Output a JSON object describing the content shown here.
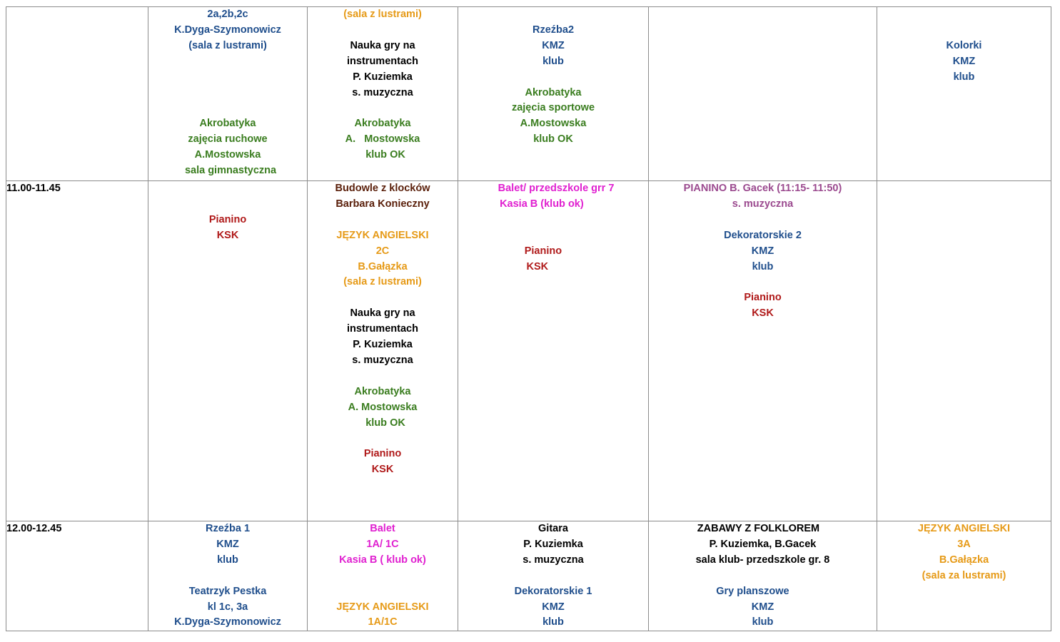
{
  "colors": {
    "navy": "#1f4e8c",
    "green": "#3a7d1f",
    "orange": "#e69a17",
    "black": "#000000",
    "red": "#b01a1a",
    "magenta": "#e020d0",
    "brown": "#5a1f0a",
    "purple": "#9b4a8f",
    "border": "#8c8c8c"
  },
  "rows": [
    {
      "time": "",
      "cells": [
        {
          "lines": [
            {
              "t": "2a,2b,2c",
              "c": "navy"
            },
            {
              "t": "K.Dyga-Szymonowicz",
              "c": "navy"
            },
            {
              "t": "(sala z lustrami)",
              "c": "navy"
            },
            {
              "t": ""
            },
            {
              "t": ""
            },
            {
              "t": ""
            },
            {
              "t": ""
            },
            {
              "t": "Akrobatyka",
              "c": "green"
            },
            {
              "t": "zajęcia ruchowe",
              "c": "green"
            },
            {
              "t": "A.Mostowska",
              "c": "green"
            },
            {
              "t": "  sala gimnastyczna",
              "c": "green"
            }
          ]
        },
        {
          "lines": [
            {
              "t": "(sala z lustrami)",
              "c": "orange"
            },
            {
              "t": ""
            },
            {
              "t": "Nauka gry na",
              "c": "black"
            },
            {
              "t": "instrumentach",
              "c": "black"
            },
            {
              "t": "P. Kuziemka",
              "c": "black"
            },
            {
              "t": "s. muzyczna",
              "c": "black"
            },
            {
              "t": ""
            },
            {
              "t": "Akrobatyka",
              "c": "green"
            },
            {
              "t": "A.   Mostowska",
              "c": "green"
            },
            {
              "t": "  klub OK",
              "c": "green"
            }
          ]
        },
        {
          "lines": [
            {
              "t": ""
            },
            {
              "t": "Rzeźba2",
              "c": "navy"
            },
            {
              "t": "KMZ",
              "c": "navy"
            },
            {
              "t": "klub",
              "c": "navy"
            },
            {
              "t": ""
            },
            {
              "t": "Akrobatyka",
              "c": "green"
            },
            {
              "t": "zajęcia sportowe",
              "c": "green"
            },
            {
              "t": "A.Mostowska",
              "c": "green"
            },
            {
              "t": "klub OK",
              "c": "green"
            }
          ]
        },
        {
          "lines": []
        },
        {
          "lines": [
            {
              "t": ""
            },
            {
              "t": ""
            },
            {
              "t": "Kolorki",
              "c": "navy"
            },
            {
              "t": "KMZ",
              "c": "navy"
            },
            {
              "t": "klub",
              "c": "navy"
            }
          ]
        }
      ]
    },
    {
      "time": "11.00-11.45",
      "cells": [
        {
          "lines": [
            {
              "t": ""
            },
            {
              "t": ""
            },
            {
              "t": "Pianino",
              "c": "red"
            },
            {
              "t": "KSK",
              "c": "red"
            }
          ]
        },
        {
          "lines": [
            {
              "t": "Budowle z klocków",
              "c": "brown"
            },
            {
              "t": "Barbara Konieczny",
              "c": "brown"
            },
            {
              "t": ""
            },
            {
              "t": "JĘZYK ANGIELSKI",
              "c": "orange"
            },
            {
              "t": "2C",
              "c": "orange"
            },
            {
              "t": "B.Gałązka",
              "c": "orange"
            },
            {
              "t": "(sala z lustrami)",
              "c": "orange"
            },
            {
              "t": ""
            },
            {
              "t": "Nauka gry na",
              "c": "black"
            },
            {
              "t": "instrumentach",
              "c": "black"
            },
            {
              "t": "P. Kuziemka",
              "c": "black"
            },
            {
              "t": "s. muzyczna",
              "c": "black"
            },
            {
              "t": ""
            },
            {
              "t": "Akrobatyka",
              "c": "green"
            },
            {
              "t": "A. Mostowska",
              "c": "green"
            },
            {
              "t": "  klub OK",
              "c": "green"
            },
            {
              "t": ""
            },
            {
              "t": "Pianino",
              "c": "red"
            },
            {
              "t": "KSK",
              "c": "red"
            }
          ]
        },
        {
          "lines": [
            {
              "t": "  Balet/ przedszkole grr 7",
              "c": "magenta"
            },
            {
              "t": "Kasia B (klub ok)        ",
              "c": "magenta"
            },
            {
              "t": ""
            },
            {
              "t": ""
            },
            {
              "t": "Pianino       ",
              "c": "red"
            },
            {
              "t": "KSK           ",
              "c": "red"
            }
          ]
        },
        {
          "lines": [
            {
              "t": "PIANINO B. Gacek (11:15- 11:50)",
              "c": "purple"
            },
            {
              "t": "s. muzyczna",
              "c": "purple"
            },
            {
              "t": ""
            },
            {
              "t": "Dekoratorskie 2",
              "c": "navy"
            },
            {
              "t": "KMZ",
              "c": "navy"
            },
            {
              "t": "klub",
              "c": "navy"
            },
            {
              "t": ""
            },
            {
              "t": "Pianino",
              "c": "red"
            },
            {
              "t": "KSK",
              "c": "red"
            }
          ]
        },
        {
          "lines": []
        }
      ]
    },
    {
      "time": "12.00-12.45",
      "cells": [
        {
          "lines": [
            {
              "t": "Rzeźba 1",
              "c": "navy"
            },
            {
              "t": "KMZ",
              "c": "navy"
            },
            {
              "t": "klub",
              "c": "navy"
            },
            {
              "t": ""
            },
            {
              "t": "Teatrzyk Pestka",
              "c": "navy"
            },
            {
              "t": "kl 1c, 3a",
              "c": "navy"
            },
            {
              "t": "K.Dyga-Szymonowicz",
              "c": "navy"
            }
          ]
        },
        {
          "lines": [
            {
              "t": "Balet",
              "c": "magenta"
            },
            {
              "t": "1A/ 1C",
              "c": "magenta"
            },
            {
              "t": "Kasia B ( klub ok)",
              "c": "magenta"
            },
            {
              "t": ""
            },
            {
              "t": ""
            },
            {
              "t": "JĘZYK ANGIELSKI",
              "c": "orange"
            },
            {
              "t": "1A/1C",
              "c": "orange"
            }
          ]
        },
        {
          "lines": [
            {
              "t": "Gitara",
              "c": "black"
            },
            {
              "t": "P. Kuziemka",
              "c": "black"
            },
            {
              "t": "s. muzyczna",
              "c": "black"
            },
            {
              "t": ""
            },
            {
              "t": "Dekoratorskie 1",
              "c": "navy"
            },
            {
              "t": "KMZ",
              "c": "navy"
            },
            {
              "t": "klub",
              "c": "navy"
            }
          ]
        },
        {
          "lines": [
            {
              "t": "ZABAWY Z FOLKLOREM   ",
              "c": "black"
            },
            {
              "t": "P. Kuziemka, B.Gacek",
              "c": "black"
            },
            {
              "t": "sala klub- przedszkole gr. 8",
              "c": "black"
            },
            {
              "t": ""
            },
            {
              "t": "Gry planszowe       ",
              "c": "navy"
            },
            {
              "t": "KMZ",
              "c": "navy"
            },
            {
              "t": "klub",
              "c": "navy"
            }
          ]
        },
        {
          "lines": [
            {
              "t": "JĘZYK ANGIELSKI",
              "c": "orange"
            },
            {
              "t": "3A",
              "c": "orange"
            },
            {
              "t": "B.Gałązka",
              "c": "orange"
            },
            {
              "t": "(sala za lustrami)",
              "c": "orange"
            }
          ]
        }
      ]
    }
  ]
}
